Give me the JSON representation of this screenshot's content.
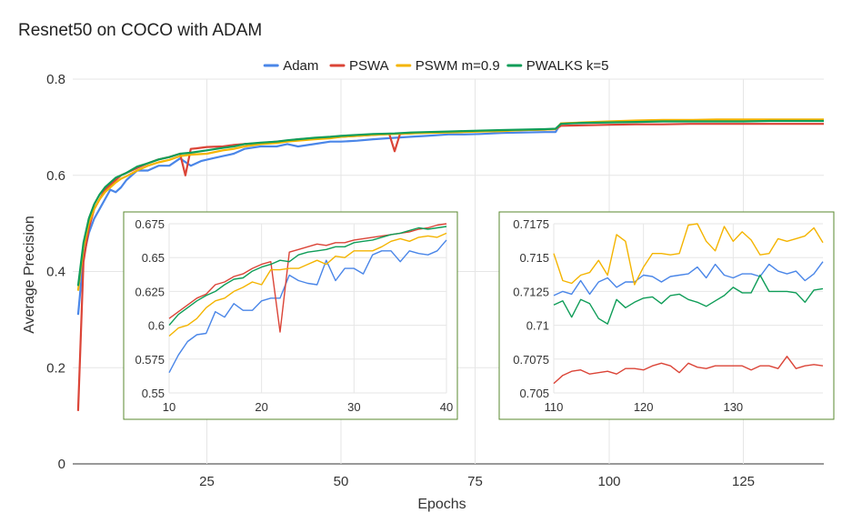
{
  "chart_data": {
    "type": "line",
    "title": "Resnet50 on COCO with ADAM",
    "xlabel": "Epochs",
    "ylabel": "Average Precision",
    "xlim": [
      0,
      140
    ],
    "ylim": [
      0,
      0.8
    ],
    "x_ticks": [
      25,
      50,
      75,
      100,
      125
    ],
    "y_ticks": [
      0,
      0.2,
      0.4,
      0.6,
      0.8
    ],
    "x_tick_labels": [
      "25",
      "50",
      "75",
      "100",
      "125"
    ],
    "y_tick_labels": [
      "0",
      "0.2",
      "0.4",
      "0.6",
      "0.8"
    ],
    "grid": true,
    "legend_position": "top-center",
    "colors": {
      "Adam": "#4a86e8",
      "PSWA": "#db4437",
      "PSWM m=0.9": "#f4b400",
      "PWALKS k=5": "#0f9d58"
    },
    "series": [
      {
        "name": "Adam",
        "x": [
          1,
          2,
          3,
          4,
          5,
          6,
          7,
          8,
          9,
          10,
          12,
          14,
          16,
          18,
          20,
          22,
          24,
          26,
          28,
          30,
          32,
          35,
          38,
          40,
          42,
          45,
          48,
          50,
          53,
          56,
          60,
          63,
          66,
          70,
          73,
          76,
          80,
          84,
          88,
          90,
          91,
          95,
          100,
          105,
          110,
          115,
          120,
          125,
          130,
          135,
          140
        ],
        "y": [
          0.31,
          0.43,
          0.48,
          0.51,
          0.53,
          0.55,
          0.57,
          0.565,
          0.575,
          0.59,
          0.61,
          0.61,
          0.62,
          0.62,
          0.635,
          0.62,
          0.63,
          0.635,
          0.64,
          0.645,
          0.655,
          0.66,
          0.66,
          0.665,
          0.66,
          0.665,
          0.67,
          0.67,
          0.672,
          0.675,
          0.678,
          0.68,
          0.682,
          0.685,
          0.685,
          0.686,
          0.688,
          0.689,
          0.69,
          0.69,
          0.708,
          0.709,
          0.711,
          0.712,
          0.713,
          0.713,
          0.713,
          0.714,
          0.714,
          0.714,
          0.715
        ]
      },
      {
        "name": "PSWA",
        "x": [
          1,
          2,
          3,
          4,
          5,
          6,
          7,
          8,
          9,
          10,
          12,
          14,
          16,
          18,
          20,
          21,
          22,
          23,
          25,
          28,
          30,
          32,
          35,
          38,
          40,
          42,
          45,
          48,
          50,
          53,
          56,
          59,
          60,
          61,
          63,
          66,
          70,
          73,
          76,
          80,
          84,
          88,
          90,
          91,
          95,
          100,
          105,
          110,
          115,
          120,
          125,
          130,
          135,
          140
        ],
        "y": [
          0.11,
          0.42,
          0.49,
          0.53,
          0.55,
          0.57,
          0.58,
          0.59,
          0.6,
          0.605,
          0.615,
          0.625,
          0.633,
          0.638,
          0.645,
          0.6,
          0.655,
          0.656,
          0.659,
          0.66,
          0.663,
          0.665,
          0.667,
          0.67,
          0.672,
          0.675,
          0.677,
          0.678,
          0.68,
          0.682,
          0.684,
          0.686,
          0.65,
          0.686,
          0.687,
          0.689,
          0.69,
          0.691,
          0.692,
          0.693,
          0.694,
          0.695,
          0.696,
          0.703,
          0.704,
          0.705,
          0.706,
          0.706,
          0.707,
          0.707,
          0.707,
          0.707,
          0.707,
          0.707
        ]
      },
      {
        "name": "PSWM m=0.9",
        "x": [
          1,
          2,
          3,
          4,
          5,
          6,
          7,
          8,
          9,
          10,
          12,
          14,
          16,
          18,
          20,
          22,
          25,
          28,
          30,
          32,
          35,
          38,
          40,
          42,
          45,
          48,
          50,
          53,
          56,
          60,
          63,
          66,
          70,
          73,
          76,
          80,
          84,
          88,
          90,
          91,
          95,
          100,
          105,
          110,
          115,
          120,
          125,
          130,
          135,
          140
        ],
        "y": [
          0.36,
          0.45,
          0.5,
          0.53,
          0.55,
          0.565,
          0.575,
          0.585,
          0.593,
          0.598,
          0.61,
          0.62,
          0.627,
          0.632,
          0.64,
          0.643,
          0.645,
          0.652,
          0.655,
          0.66,
          0.665,
          0.667,
          0.67,
          0.672,
          0.675,
          0.677,
          0.68,
          0.682,
          0.684,
          0.686,
          0.687,
          0.688,
          0.689,
          0.69,
          0.691,
          0.692,
          0.694,
          0.695,
          0.696,
          0.708,
          0.71,
          0.712,
          0.714,
          0.715,
          0.715,
          0.716,
          0.716,
          0.716,
          0.716,
          0.716
        ]
      },
      {
        "name": "PWALKS k=5",
        "x": [
          1,
          2,
          3,
          4,
          5,
          6,
          7,
          8,
          9,
          10,
          12,
          14,
          16,
          18,
          20,
          22,
          25,
          28,
          30,
          32,
          35,
          38,
          40,
          42,
          45,
          48,
          50,
          53,
          56,
          60,
          63,
          66,
          70,
          73,
          76,
          80,
          84,
          88,
          90,
          91,
          95,
          100,
          105,
          110,
          115,
          120,
          125,
          130,
          135,
          140
        ],
        "y": [
          0.37,
          0.46,
          0.51,
          0.54,
          0.56,
          0.575,
          0.585,
          0.595,
          0.6,
          0.605,
          0.618,
          0.625,
          0.633,
          0.638,
          0.645,
          0.647,
          0.652,
          0.657,
          0.66,
          0.665,
          0.668,
          0.67,
          0.673,
          0.675,
          0.678,
          0.68,
          0.682,
          0.684,
          0.686,
          0.687,
          0.689,
          0.69,
          0.691,
          0.692,
          0.693,
          0.694,
          0.695,
          0.696,
          0.697,
          0.707,
          0.709,
          0.71,
          0.711,
          0.712,
          0.712,
          0.712,
          0.712,
          0.713,
          0.713,
          0.713
        ]
      }
    ],
    "insets": [
      {
        "xlim": [
          10,
          40
        ],
        "ylim": [
          0.55,
          0.675
        ],
        "x_ticks": [
          10,
          20,
          30,
          40
        ],
        "x_tick_labels": [
          "10",
          "20",
          "30",
          "40"
        ],
        "y_ticks": [
          0.55,
          0.575,
          0.6,
          0.625,
          0.65,
          0.675
        ],
        "y_tick_labels": [
          "0.55",
          "0.575",
          "0.6",
          "0.625",
          "0.65",
          "0.675"
        ],
        "series": [
          {
            "name": "Adam",
            "x": [
              10,
              11,
              12,
              13,
              14,
              15,
              16,
              17,
              18,
              19,
              20,
              21,
              22,
              23,
              24,
              25,
              26,
              27,
              28,
              29,
              30,
              31,
              32,
              33,
              34,
              35,
              36,
              37,
              38,
              39,
              40
            ],
            "y": [
              0.565,
              0.578,
              0.588,
              0.593,
              0.594,
              0.61,
              0.606,
              0.616,
              0.611,
              0.611,
              0.618,
              0.62,
              0.62,
              0.637,
              0.633,
              0.631,
              0.63,
              0.648,
              0.633,
              0.642,
              0.642,
              0.638,
              0.652,
              0.655,
              0.655,
              0.647,
              0.655,
              0.653,
              0.652,
              0.655,
              0.663
            ]
          },
          {
            "name": "PSWA",
            "x": [
              10,
              11,
              12,
              13,
              14,
              15,
              16,
              17,
              18,
              19,
              20,
              21,
              22,
              23,
              24,
              25,
              26,
              27,
              28,
              29,
              30,
              31,
              32,
              33,
              34,
              35,
              36,
              37,
              38,
              39,
              40
            ],
            "y": [
              0.605,
              0.61,
              0.615,
              0.62,
              0.623,
              0.63,
              0.632,
              0.636,
              0.638,
              0.642,
              0.645,
              0.647,
              0.595,
              0.654,
              0.656,
              0.658,
              0.66,
              0.659,
              0.661,
              0.661,
              0.663,
              0.664,
              0.665,
              0.666,
              0.667,
              0.668,
              0.669,
              0.671,
              0.672,
              0.674,
              0.675
            ]
          },
          {
            "name": "PSWM m=0.9",
            "x": [
              10,
              11,
              12,
              13,
              14,
              15,
              16,
              17,
              18,
              19,
              20,
              21,
              22,
              23,
              24,
              25,
              26,
              27,
              28,
              29,
              30,
              31,
              32,
              33,
              34,
              35,
              36,
              37,
              38,
              39,
              40
            ],
            "y": [
              0.592,
              0.598,
              0.6,
              0.605,
              0.613,
              0.618,
              0.62,
              0.625,
              0.628,
              0.632,
              0.63,
              0.641,
              0.641,
              0.642,
              0.642,
              0.645,
              0.648,
              0.645,
              0.651,
              0.65,
              0.655,
              0.655,
              0.655,
              0.658,
              0.662,
              0.664,
              0.662,
              0.665,
              0.666,
              0.665,
              0.668
            ]
          },
          {
            "name": "PWALKS k=5",
            "x": [
              10,
              11,
              12,
              13,
              14,
              15,
              16,
              17,
              18,
              19,
              20,
              21,
              22,
              23,
              24,
              25,
              26,
              27,
              28,
              29,
              30,
              31,
              32,
              33,
              34,
              35,
              36,
              37,
              38,
              39,
              40
            ],
            "y": [
              0.6,
              0.608,
              0.613,
              0.618,
              0.622,
              0.625,
              0.63,
              0.634,
              0.635,
              0.64,
              0.643,
              0.645,
              0.648,
              0.647,
              0.652,
              0.654,
              0.655,
              0.656,
              0.658,
              0.658,
              0.661,
              0.662,
              0.663,
              0.665,
              0.667,
              0.668,
              0.67,
              0.672,
              0.671,
              0.672,
              0.673
            ]
          }
        ]
      },
      {
        "xlim": [
          110,
          140
        ],
        "ylim": [
          0.705,
          0.7175
        ],
        "x_ticks": [
          110,
          120,
          130
        ],
        "x_tick_labels": [
          "110",
          "120",
          "130"
        ],
        "y_ticks": [
          0.705,
          0.7075,
          0.71,
          0.7125,
          0.715,
          0.7175
        ],
        "y_tick_labels": [
          "0.705",
          "0.7075",
          "0.71",
          "0.7125",
          "0.715",
          "0.7175"
        ],
        "series": [
          {
            "name": "Adam",
            "x": [
              110,
              111,
              112,
              113,
              114,
              115,
              116,
              117,
              118,
              119,
              120,
              121,
              122,
              123,
              124,
              125,
              126,
              127,
              128,
              129,
              130,
              131,
              132,
              133,
              134,
              135,
              136,
              137,
              138,
              139,
              140
            ],
            "y": [
              0.7122,
              0.7125,
              0.7123,
              0.7133,
              0.7123,
              0.7132,
              0.7135,
              0.7128,
              0.7132,
              0.7132,
              0.7137,
              0.7136,
              0.7132,
              0.7136,
              0.7137,
              0.7138,
              0.7143,
              0.7135,
              0.7145,
              0.7137,
              0.7135,
              0.7138,
              0.7138,
              0.7136,
              0.7145,
              0.714,
              0.7138,
              0.714,
              0.7133,
              0.7138,
              0.7147
            ]
          },
          {
            "name": "PSWA",
            "x": [
              110,
              111,
              112,
              113,
              114,
              115,
              116,
              117,
              118,
              119,
              120,
              121,
              122,
              123,
              124,
              125,
              126,
              127,
              128,
              129,
              130,
              131,
              132,
              133,
              134,
              135,
              136,
              137,
              138,
              139,
              140
            ],
            "y": [
              0.7057,
              0.7063,
              0.7066,
              0.7067,
              0.7064,
              0.7065,
              0.7066,
              0.7064,
              0.7068,
              0.7068,
              0.7067,
              0.707,
              0.7072,
              0.707,
              0.7065,
              0.7072,
              0.7069,
              0.7068,
              0.707,
              0.707,
              0.707,
              0.707,
              0.7067,
              0.707,
              0.707,
              0.7068,
              0.7077,
              0.7068,
              0.707,
              0.7071,
              0.707
            ]
          },
          {
            "name": "PSWM m=0.9",
            "x": [
              110,
              111,
              112,
              113,
              114,
              115,
              116,
              117,
              118,
              119,
              120,
              121,
              122,
              123,
              124,
              125,
              126,
              127,
              128,
              129,
              130,
              131,
              132,
              133,
              134,
              135,
              136,
              137,
              138,
              139,
              140
            ],
            "y": [
              0.7153,
              0.7133,
              0.7131,
              0.7137,
              0.7139,
              0.7148,
              0.7137,
              0.7167,
              0.7162,
              0.713,
              0.7143,
              0.7153,
              0.7153,
              0.7152,
              0.7153,
              0.7174,
              0.7175,
              0.7162,
              0.7155,
              0.7173,
              0.7162,
              0.7169,
              0.7163,
              0.7152,
              0.7153,
              0.7164,
              0.7162,
              0.7164,
              0.7166,
              0.7172,
              0.7161
            ]
          },
          {
            "name": "PWALKS k=5",
            "x": [
              110,
              111,
              112,
              113,
              114,
              115,
              116,
              117,
              118,
              119,
              120,
              121,
              122,
              123,
              124,
              125,
              126,
              127,
              128,
              129,
              130,
              131,
              132,
              133,
              134,
              135,
              136,
              137,
              138,
              139,
              140
            ],
            "y": [
              0.7115,
              0.7118,
              0.7106,
              0.7119,
              0.7116,
              0.7105,
              0.7101,
              0.7119,
              0.7113,
              0.7117,
              0.712,
              0.7121,
              0.7116,
              0.7122,
              0.7123,
              0.7119,
              0.7117,
              0.7114,
              0.7118,
              0.7122,
              0.7128,
              0.7124,
              0.7124,
              0.7137,
              0.7125,
              0.7125,
              0.7125,
              0.7124,
              0.7117,
              0.7126,
              0.7127
            ]
          }
        ]
      }
    ]
  }
}
